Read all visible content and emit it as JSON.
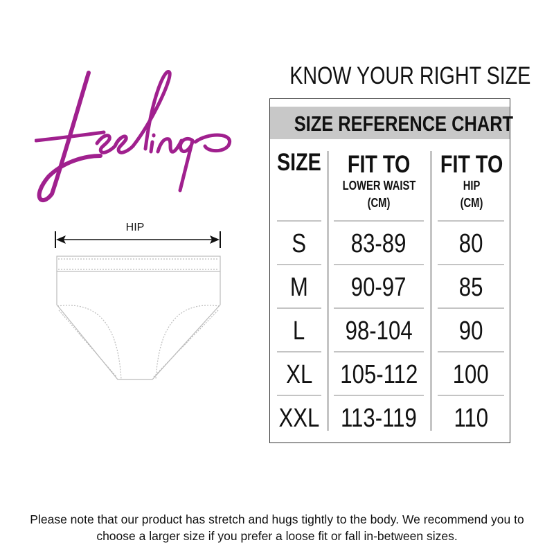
{
  "brand": {
    "logo_text": "feelings",
    "color": "#a0208e"
  },
  "diagram": {
    "measure_label": "HIP"
  },
  "heading": "KNOW YOUR RIGHT SIZE",
  "chart": {
    "title": "SIZE REFERENCE CHART",
    "columns": [
      {
        "title": "SIZE",
        "subtitle": "",
        "unit": ""
      },
      {
        "title": "FIT TO",
        "subtitle": "LOWER WAIST",
        "unit": "(CM)"
      },
      {
        "title": "FIT TO",
        "subtitle": "HIP",
        "unit": "(CM)"
      }
    ],
    "rows": [
      [
        "S",
        "83-89",
        "80"
      ],
      [
        "M",
        "90-97",
        "85"
      ],
      [
        "L",
        "98-104",
        "90"
      ],
      [
        "XL",
        "105-112",
        "100"
      ],
      [
        "XXL",
        "113-119",
        "110"
      ]
    ]
  },
  "note": "Please note that our product has stretch and hugs tightly to the body. We recommend you to choose a larger size if you prefer a loose fit or fall in-between sizes."
}
